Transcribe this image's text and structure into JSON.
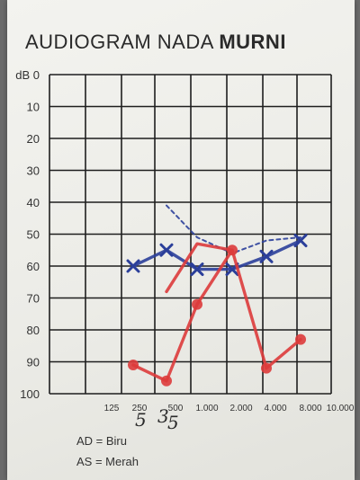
{
  "title": {
    "main": "AUDIOGRAM NADA",
    "emphasis": "MURNI"
  },
  "legend": {
    "ad": "AD = Biru",
    "as": "AS = Merah"
  },
  "colors": {
    "ad_blue": "#2b3f9a",
    "as_red": "#dd3b3b",
    "grid": "#1e1e1e",
    "handwriting": "#2a2a2a"
  },
  "chart_data": {
    "type": "line",
    "title": "AUDIOGRAM NADA MURNI",
    "xlabel": "",
    "ylabel": "",
    "x_tick_labels": [
      "125",
      "250",
      "500",
      "1.000",
      "2.000",
      "4.000",
      "8.000",
      "10.000"
    ],
    "y_ticks": [
      0,
      10,
      20,
      30,
      40,
      50,
      60,
      70,
      80,
      90,
      100
    ],
    "y_tick_labels": [
      "dB 0",
      "10",
      "20",
      "30",
      "40",
      "50",
      "60",
      "70",
      "80",
      "90",
      "100"
    ],
    "ylim": [
      100,
      0
    ],
    "y_inverted": true,
    "grid": true,
    "series": [
      {
        "name": "AD = Biru",
        "color": "#2b3f9a",
        "marker": "x",
        "points": [
          {
            "x": "250",
            "y": 60
          },
          {
            "x": "500",
            "y": 55
          },
          {
            "x": "1.000",
            "y": 61
          },
          {
            "x": "2.000",
            "y": 61
          },
          {
            "x": "4.000",
            "y": 57
          },
          {
            "x": "8.000",
            "y": 52
          }
        ]
      },
      {
        "name": "AD dashed",
        "color": "#2b3f9a",
        "dashed": true,
        "points": [
          {
            "x": "500",
            "y": 41
          },
          {
            "x": "1.000",
            "y": 51
          },
          {
            "x": "2.000",
            "y": 56
          },
          {
            "x": "4.000",
            "y": 52
          },
          {
            "x": "8.000",
            "y": 51
          }
        ]
      },
      {
        "name": "AS = Merah",
        "color": "#dd3b3b",
        "marker": "o",
        "points": [
          {
            "x": "250",
            "y": 91
          },
          {
            "x": "500",
            "y": 96
          },
          {
            "x": "1.000",
            "y": 72
          },
          {
            "x": "2.000",
            "y": 55
          },
          {
            "x": "4.000",
            "y": 92
          },
          {
            "x": "8.000",
            "y": 83
          }
        ]
      },
      {
        "name": "AS bracket",
        "color": "#dd3b3b",
        "points": [
          {
            "x": "500",
            "y": 68
          },
          {
            "x": "1.000",
            "y": 53
          },
          {
            "x": "2.000",
            "y": 55
          }
        ]
      }
    ],
    "handwritten_notes": [
      "5",
      "3",
      "5"
    ]
  }
}
